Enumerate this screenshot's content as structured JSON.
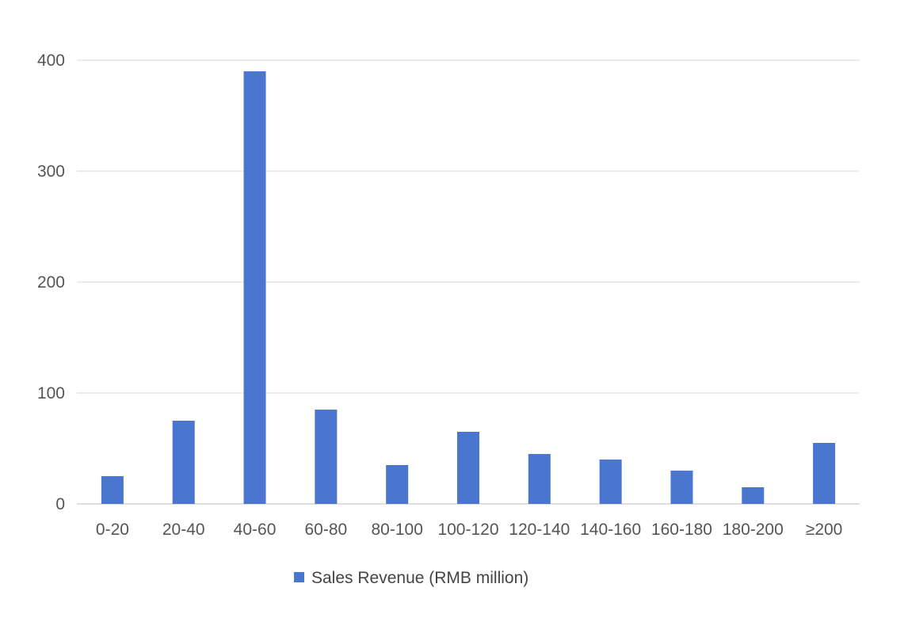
{
  "chart_data": {
    "type": "bar",
    "title": "",
    "xlabel": "",
    "ylabel": "",
    "categories": [
      "0-20",
      "20-40",
      "40-60",
      "60-80",
      "80-100",
      "100-120",
      "120-140",
      "140-160",
      "160-180",
      "180-200",
      "≥200"
    ],
    "series": [
      {
        "name": "Sales Revenue (RMB million)",
        "values": [
          25,
          75,
          390,
          85,
          35,
          65,
          45,
          40,
          30,
          15,
          55
        ],
        "color": "#4a76d0"
      }
    ],
    "ylim": [
      0,
      400
    ],
    "yticks": [
      0,
      100,
      200,
      300,
      400
    ],
    "grid": true,
    "legend_position": "bottom-center"
  }
}
